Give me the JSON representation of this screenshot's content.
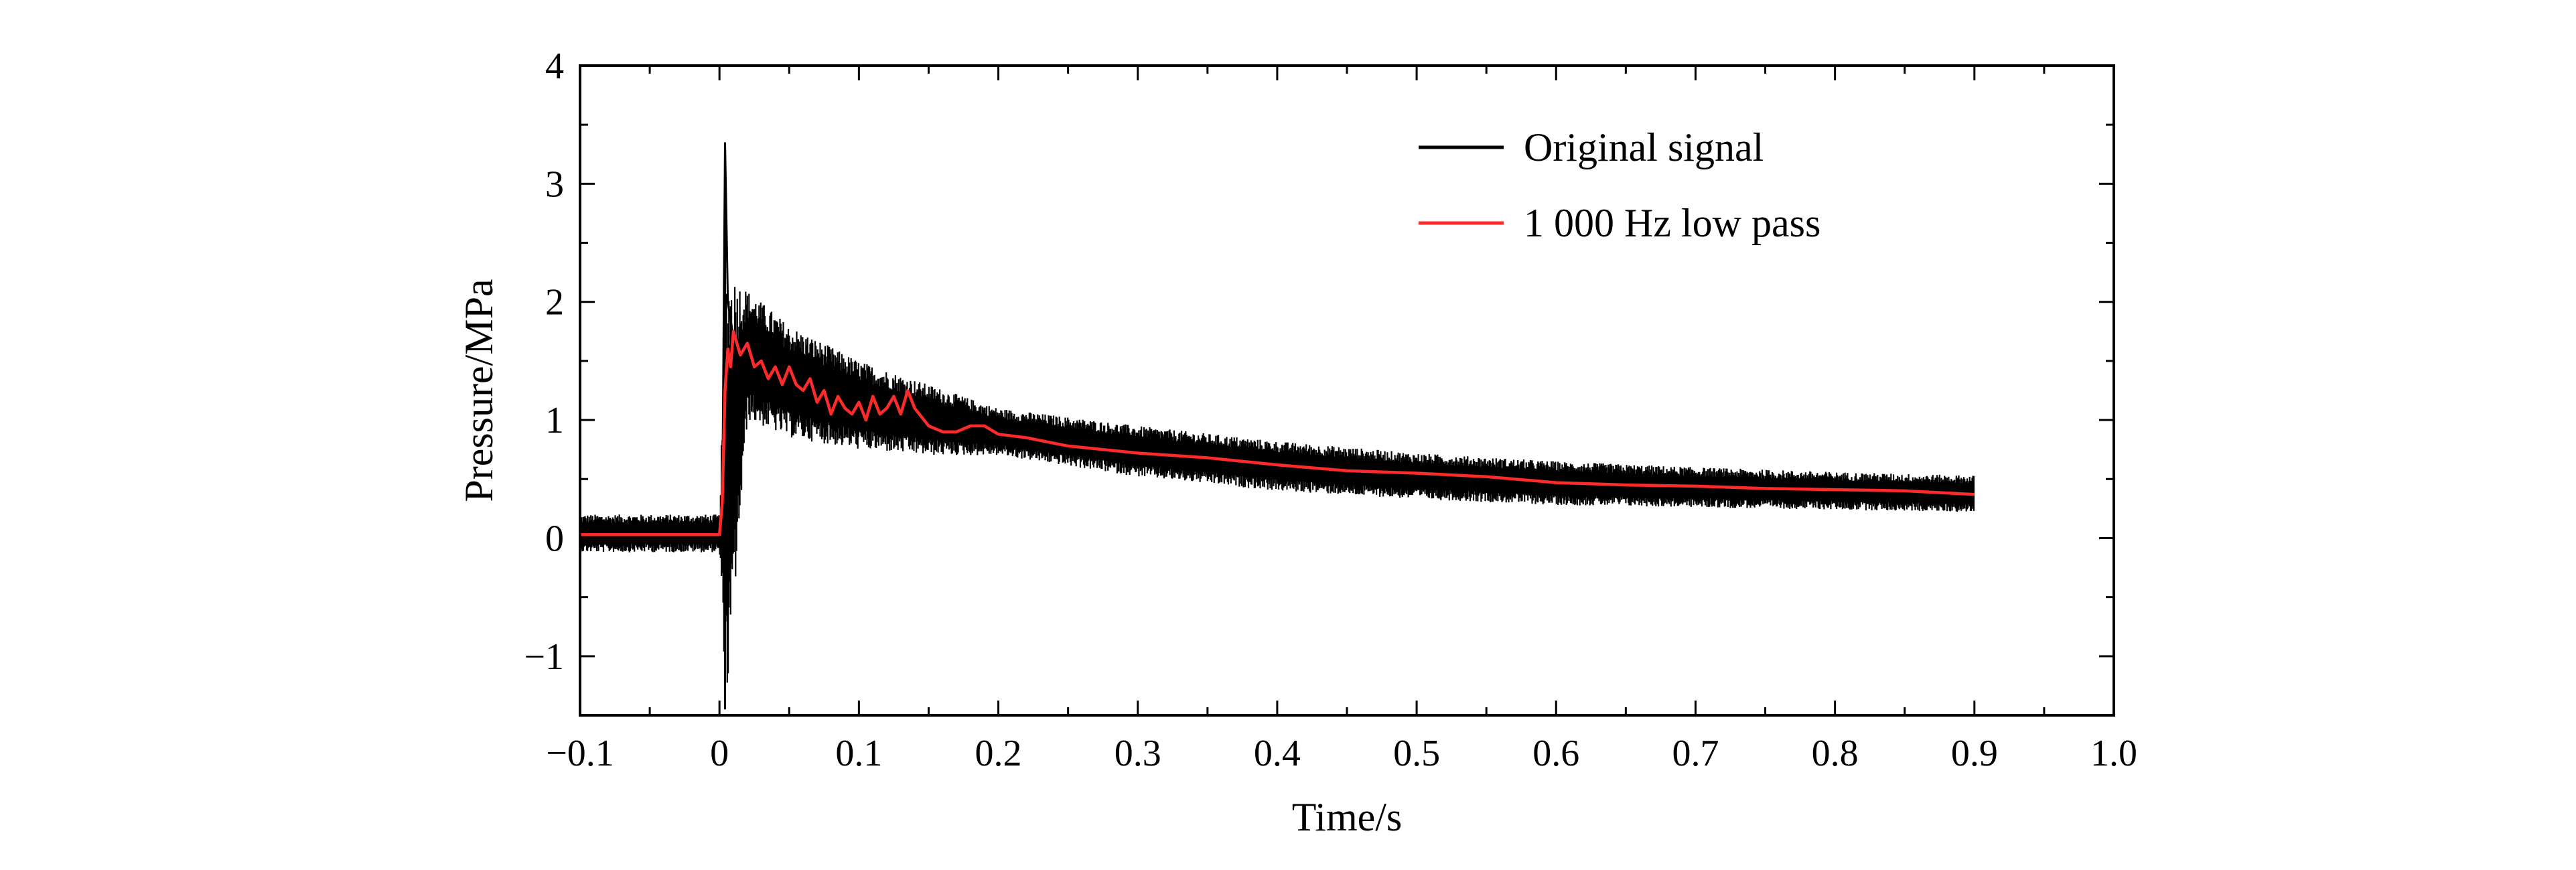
{
  "chart_data": {
    "type": "line",
    "title": "",
    "xlabel": "Time/s",
    "ylabel": "Pressure/MPa",
    "xlim": [
      -0.1,
      1.0
    ],
    "ylim": [
      -1.5,
      4
    ],
    "x_ticks": [
      -0.1,
      0,
      0.1,
      0.2,
      0.3,
      0.4,
      0.5,
      0.6,
      0.7,
      0.8,
      0.9,
      1.0
    ],
    "x_tick_labels": [
      "−0.1",
      "0",
      "0.1",
      "0.2",
      "0.3",
      "0.4",
      "0.5",
      "0.6",
      "0.7",
      "0.8",
      "0.9",
      "1.0"
    ],
    "y_ticks": [
      -1,
      0,
      1,
      2,
      3,
      4
    ],
    "y_tick_labels": [
      "−1",
      "0",
      "1",
      "2",
      "3",
      "4"
    ],
    "grid": false,
    "legend_position": "top-right",
    "series": [
      {
        "name": "Original signal",
        "color": "#000000",
        "x": [
          -0.1,
          -0.05,
          0,
          0.002,
          0.004,
          0.006,
          0.01,
          0.02,
          0.03,
          0.04,
          0.05,
          0.06,
          0.07,
          0.08,
          0.09,
          0.1,
          0.11,
          0.12,
          0.13,
          0.14,
          0.15,
          0.17,
          0.2,
          0.25,
          0.3,
          0.4,
          0.5,
          0.6,
          0.7,
          0.8,
          0.9
        ],
        "y": [
          0.05,
          0.05,
          0.05,
          0.2,
          3.35,
          2.0,
          1.7,
          1.6,
          1.45,
          1.5,
          1.35,
          1.3,
          1.2,
          1.1,
          1.15,
          1.05,
          1.15,
          1.1,
          1.2,
          1.1,
          0.95,
          0.9,
          0.9,
          0.78,
          0.72,
          0.6,
          0.53,
          0.47,
          0.43,
          0.4,
          0.38
        ],
        "envelope": {
          "x": [
            -0.1,
            0,
            0.005,
            0.02,
            0.05,
            0.1,
            0.15,
            0.2,
            0.3,
            0.4,
            0.5,
            0.6,
            0.7,
            0.8,
            0.9
          ],
          "upper": [
            0.2,
            0.2,
            2.3,
            2.1,
            1.8,
            1.5,
            1.3,
            1.1,
            0.95,
            0.82,
            0.72,
            0.65,
            0.6,
            0.56,
            0.53
          ],
          "lower": [
            -0.12,
            -0.12,
            -1.45,
            1.0,
            0.85,
            0.75,
            0.7,
            0.7,
            0.52,
            0.4,
            0.33,
            0.28,
            0.26,
            0.24,
            0.22
          ]
        }
      },
      {
        "name": "1 000 Hz low pass",
        "color": "#ff2a2a",
        "x": [
          -0.1,
          -0.05,
          0,
          0.002,
          0.004,
          0.006,
          0.008,
          0.01,
          0.015,
          0.02,
          0.025,
          0.03,
          0.035,
          0.04,
          0.045,
          0.05,
          0.055,
          0.06,
          0.065,
          0.07,
          0.075,
          0.08,
          0.085,
          0.09,
          0.095,
          0.1,
          0.105,
          0.11,
          0.115,
          0.12,
          0.125,
          0.13,
          0.135,
          0.14,
          0.15,
          0.16,
          0.17,
          0.18,
          0.19,
          0.2,
          0.22,
          0.25,
          0.3,
          0.35,
          0.4,
          0.45,
          0.5,
          0.55,
          0.6,
          0.65,
          0.7,
          0.75,
          0.8,
          0.85,
          0.9
        ],
        "y": [
          0.03,
          0.03,
          0.03,
          0.3,
          1.25,
          1.6,
          1.45,
          1.75,
          1.55,
          1.65,
          1.45,
          1.5,
          1.35,
          1.45,
          1.3,
          1.45,
          1.3,
          1.25,
          1.35,
          1.15,
          1.25,
          1.05,
          1.2,
          1.1,
          1.05,
          1.15,
          1.0,
          1.2,
          1.05,
          1.1,
          1.2,
          1.05,
          1.25,
          1.1,
          0.95,
          0.9,
          0.9,
          0.95,
          0.95,
          0.88,
          0.85,
          0.78,
          0.72,
          0.68,
          0.62,
          0.57,
          0.55,
          0.52,
          0.47,
          0.45,
          0.44,
          0.42,
          0.41,
          0.4,
          0.37
        ]
      }
    ]
  }
}
